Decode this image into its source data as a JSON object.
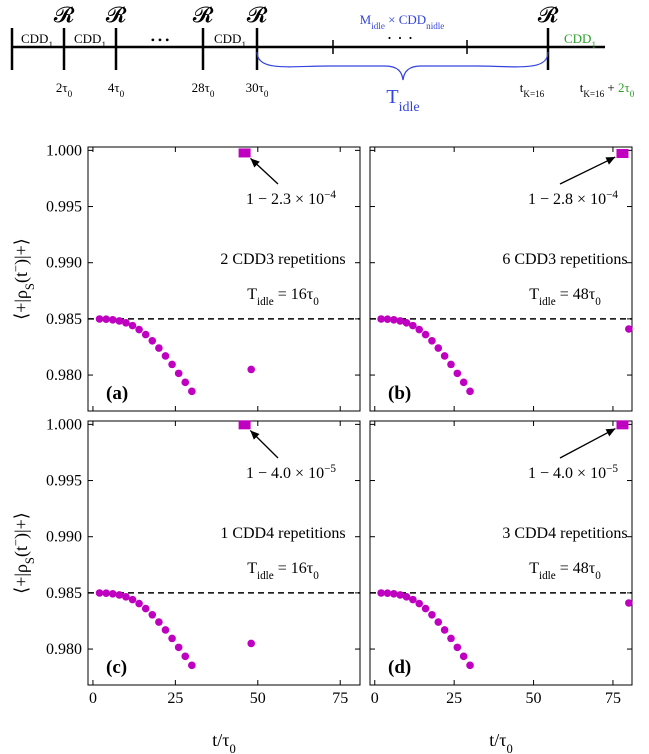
{
  "diagram": {
    "resets": [
      "𝓡",
      "𝓡",
      "𝓡",
      "𝓡",
      "𝓡"
    ],
    "blocks": [
      [
        {
          "t": "CDD"
        },
        {
          "t": "1",
          "sub": true
        }
      ],
      [
        {
          "t": "CDD"
        },
        {
          "t": "1",
          "sub": true
        }
      ],
      [
        {
          "t": "CDD"
        },
        {
          "t": "1",
          "sub": true
        }
      ],
      [
        {
          "t": "CDD",
          "color": "#2ca02c"
        },
        {
          "t": "1",
          "sub": true,
          "color": "#2ca02c"
        }
      ]
    ],
    "ellipsis": "• • •",
    "idle_block": [
      {
        "t": "M",
        "color": "#3344dd"
      },
      {
        "t": "idle",
        "sub": true,
        "color": "#3344dd"
      },
      {
        "t": " × CDD",
        "color": "#3344dd"
      },
      {
        "t": "n",
        "sub": true,
        "color": "#3344dd"
      },
      {
        "t": "idle",
        "sub": true,
        "color": "#3344dd"
      }
    ],
    "idle_ellipsis": "· · ·",
    "idle_label": [
      {
        "t": "T",
        "color": "#3344dd"
      },
      {
        "t": "idle",
        "sub": true,
        "color": "#3344dd"
      }
    ],
    "times": [
      [
        {
          "t": "2τ"
        },
        {
          "t": "0",
          "sub": true
        }
      ],
      [
        {
          "t": "4τ"
        },
        {
          "t": "0",
          "sub": true
        }
      ],
      [
        {
          "t": "28τ"
        },
        {
          "t": "0",
          "sub": true
        }
      ],
      [
        {
          "t": "30τ"
        },
        {
          "t": "0",
          "sub": true
        }
      ],
      [
        {
          "t": "t"
        },
        {
          "t": "K=16",
          "sub": true
        }
      ]
    ],
    "final_time": [
      {
        "t": "t"
      },
      {
        "t": "K=16",
        "sub": true
      },
      {
        "t": " + "
      },
      {
        "t": "2τ",
        "color": "#2ca02c"
      },
      {
        "t": "0",
        "sub": true,
        "color": "#2ca02c"
      }
    ]
  },
  "chart_data": [
    {
      "type": "scatter",
      "panel_label": "(a)",
      "ylabel": [
        {
          "t": "⟨+|ρ"
        },
        {
          "t": "S",
          "sub": true
        },
        {
          "t": "(t"
        },
        {
          "t": "−",
          "sup": true
        },
        {
          "t": ")|+⟩"
        }
      ],
      "xlim": [
        -1.5,
        81
      ],
      "ylim": [
        0.9768,
        1.0003
      ],
      "xticks": [
        0,
        25,
        50,
        75
      ],
      "yticks": [
        {
          "value": 0.98,
          "label": "0.980"
        },
        {
          "value": 0.985,
          "label": "0.985"
        },
        {
          "value": 0.99,
          "label": "0.990"
        },
        {
          "value": 0.995,
          "label": "0.995"
        },
        {
          "value": 1.0,
          "label": "1.000"
        }
      ],
      "hline": 0.985,
      "series": [
        {
          "marker": "circle",
          "color": "#c000c0",
          "x": [
            2,
            4,
            6,
            8,
            10,
            12,
            14,
            16,
            18,
            20,
            22,
            24,
            26,
            28,
            30,
            48
          ],
          "values": [
            0.98499,
            0.98497,
            0.98492,
            0.98482,
            0.98465,
            0.9844,
            0.98405,
            0.9836,
            0.98305,
            0.9824,
            0.9817,
            0.98095,
            0.98015,
            0.97935,
            0.97855,
            0.9805
          ]
        },
        {
          "marker": "square",
          "color": "#c000c0",
          "x": [
            46
          ],
          "values": [
            0.99977
          ]
        }
      ],
      "annotation": [
        {
          "t": "1 − 2.3 × 10"
        },
        {
          "t": "−4",
          "sup": true
        }
      ],
      "text_lines": [
        [
          {
            "t": "2  CDD3 repetitions"
          }
        ],
        [
          {
            "t": "T"
          },
          {
            "t": "idle",
            "sub": true
          },
          {
            "t": " = 16τ"
          },
          {
            "t": "0",
            "sub": true
          }
        ]
      ]
    },
    {
      "type": "scatter",
      "panel_label": "(b)",
      "xlim": [
        -1.5,
        81
      ],
      "ylim": [
        0.9768,
        1.0003
      ],
      "xticks": [
        0,
        25,
        50,
        75
      ],
      "yticks": [
        {
          "value": 0.98,
          "label": "0.980"
        },
        {
          "value": 0.985,
          "label": "0.985"
        },
        {
          "value": 0.99,
          "label": "0.990"
        },
        {
          "value": 0.995,
          "label": "0.995"
        },
        {
          "value": 1.0,
          "label": "1.000"
        }
      ],
      "hline": 0.985,
      "series": [
        {
          "marker": "circle",
          "color": "#c000c0",
          "x": [
            2,
            4,
            6,
            8,
            10,
            12,
            14,
            16,
            18,
            20,
            22,
            24,
            26,
            28,
            30,
            80
          ],
          "values": [
            0.98499,
            0.98497,
            0.98492,
            0.98482,
            0.98465,
            0.9844,
            0.98405,
            0.9836,
            0.98305,
            0.9824,
            0.9817,
            0.98095,
            0.98015,
            0.97935,
            0.97855,
            0.9841
          ]
        },
        {
          "marker": "square",
          "color": "#c000c0",
          "x": [
            78
          ],
          "values": [
            0.99972
          ]
        }
      ],
      "annotation": [
        {
          "t": "1 − 2.8 × 10"
        },
        {
          "t": "−4",
          "sup": true
        }
      ],
      "text_lines": [
        [
          {
            "t": "6  CDD3 repetitions"
          }
        ],
        [
          {
            "t": "T"
          },
          {
            "t": "idle",
            "sub": true
          },
          {
            "t": " = 48τ"
          },
          {
            "t": "0",
            "sub": true
          }
        ]
      ]
    },
    {
      "type": "scatter",
      "panel_label": "(c)",
      "ylabel": [
        {
          "t": "⟨+|ρ"
        },
        {
          "t": "S",
          "sub": true
        },
        {
          "t": "(t"
        },
        {
          "t": "−",
          "sup": true
        },
        {
          "t": ")|+⟩"
        }
      ],
      "xlabel": [
        {
          "t": "t/τ"
        },
        {
          "t": "0",
          "sub": true
        }
      ],
      "xlim": [
        -1.5,
        81
      ],
      "ylim": [
        0.9768,
        1.0003
      ],
      "xticks": [
        0,
        25,
        50,
        75
      ],
      "yticks": [
        {
          "value": 0.98,
          "label": "0.980"
        },
        {
          "value": 0.985,
          "label": "0.985"
        },
        {
          "value": 0.99,
          "label": "0.990"
        },
        {
          "value": 0.995,
          "label": "0.995"
        },
        {
          "value": 1.0,
          "label": "1.000"
        }
      ],
      "hline": 0.985,
      "series": [
        {
          "marker": "circle",
          "color": "#c000c0",
          "x": [
            2,
            4,
            6,
            8,
            10,
            12,
            14,
            16,
            18,
            20,
            22,
            24,
            26,
            28,
            30,
            48
          ],
          "values": [
            0.98499,
            0.98497,
            0.98492,
            0.98482,
            0.98465,
            0.9844,
            0.98405,
            0.9836,
            0.98305,
            0.9824,
            0.9817,
            0.98095,
            0.98015,
            0.97935,
            0.97855,
            0.9805
          ]
        },
        {
          "marker": "square",
          "color": "#c000c0",
          "x": [
            46
          ],
          "values": [
            0.99996
          ]
        }
      ],
      "annotation": [
        {
          "t": "1 − 4.0 × 10"
        },
        {
          "t": "−5",
          "sup": true
        }
      ],
      "text_lines": [
        [
          {
            "t": "1  CDD4 repetitions"
          }
        ],
        [
          {
            "t": "T"
          },
          {
            "t": "idle",
            "sub": true
          },
          {
            "t": " = 16τ"
          },
          {
            "t": "0",
            "sub": true
          }
        ]
      ]
    },
    {
      "type": "scatter",
      "panel_label": "(d)",
      "xlabel": [
        {
          "t": "t/τ"
        },
        {
          "t": "0",
          "sub": true
        }
      ],
      "xlim": [
        -1.5,
        81
      ],
      "ylim": [
        0.9768,
        1.0003
      ],
      "xticks": [
        0,
        25,
        50,
        75
      ],
      "yticks": [
        {
          "value": 0.98,
          "label": "0.980"
        },
        {
          "value": 0.985,
          "label": "0.985"
        },
        {
          "value": 0.99,
          "label": "0.990"
        },
        {
          "value": 0.995,
          "label": "0.995"
        },
        {
          "value": 1.0,
          "label": "1.000"
        }
      ],
      "hline": 0.985,
      "series": [
        {
          "marker": "circle",
          "color": "#c000c0",
          "x": [
            2,
            4,
            6,
            8,
            10,
            12,
            14,
            16,
            18,
            20,
            22,
            24,
            26,
            28,
            30,
            80
          ],
          "values": [
            0.98499,
            0.98497,
            0.98492,
            0.98482,
            0.98465,
            0.9844,
            0.98405,
            0.9836,
            0.98305,
            0.9824,
            0.9817,
            0.98095,
            0.98015,
            0.97935,
            0.97855,
            0.9841
          ]
        },
        {
          "marker": "square",
          "color": "#c000c0",
          "x": [
            78
          ],
          "values": [
            0.99996
          ]
        }
      ],
      "annotation": [
        {
          "t": "1 − 4.0 × 10"
        },
        {
          "t": "−5",
          "sup": true
        }
      ],
      "text_lines": [
        [
          {
            "t": "3  CDD4 repetitions"
          }
        ],
        [
          {
            "t": "T"
          },
          {
            "t": "idle",
            "sub": true
          },
          {
            "t": " = 48τ"
          },
          {
            "t": "0",
            "sub": true
          }
        ]
      ]
    }
  ]
}
